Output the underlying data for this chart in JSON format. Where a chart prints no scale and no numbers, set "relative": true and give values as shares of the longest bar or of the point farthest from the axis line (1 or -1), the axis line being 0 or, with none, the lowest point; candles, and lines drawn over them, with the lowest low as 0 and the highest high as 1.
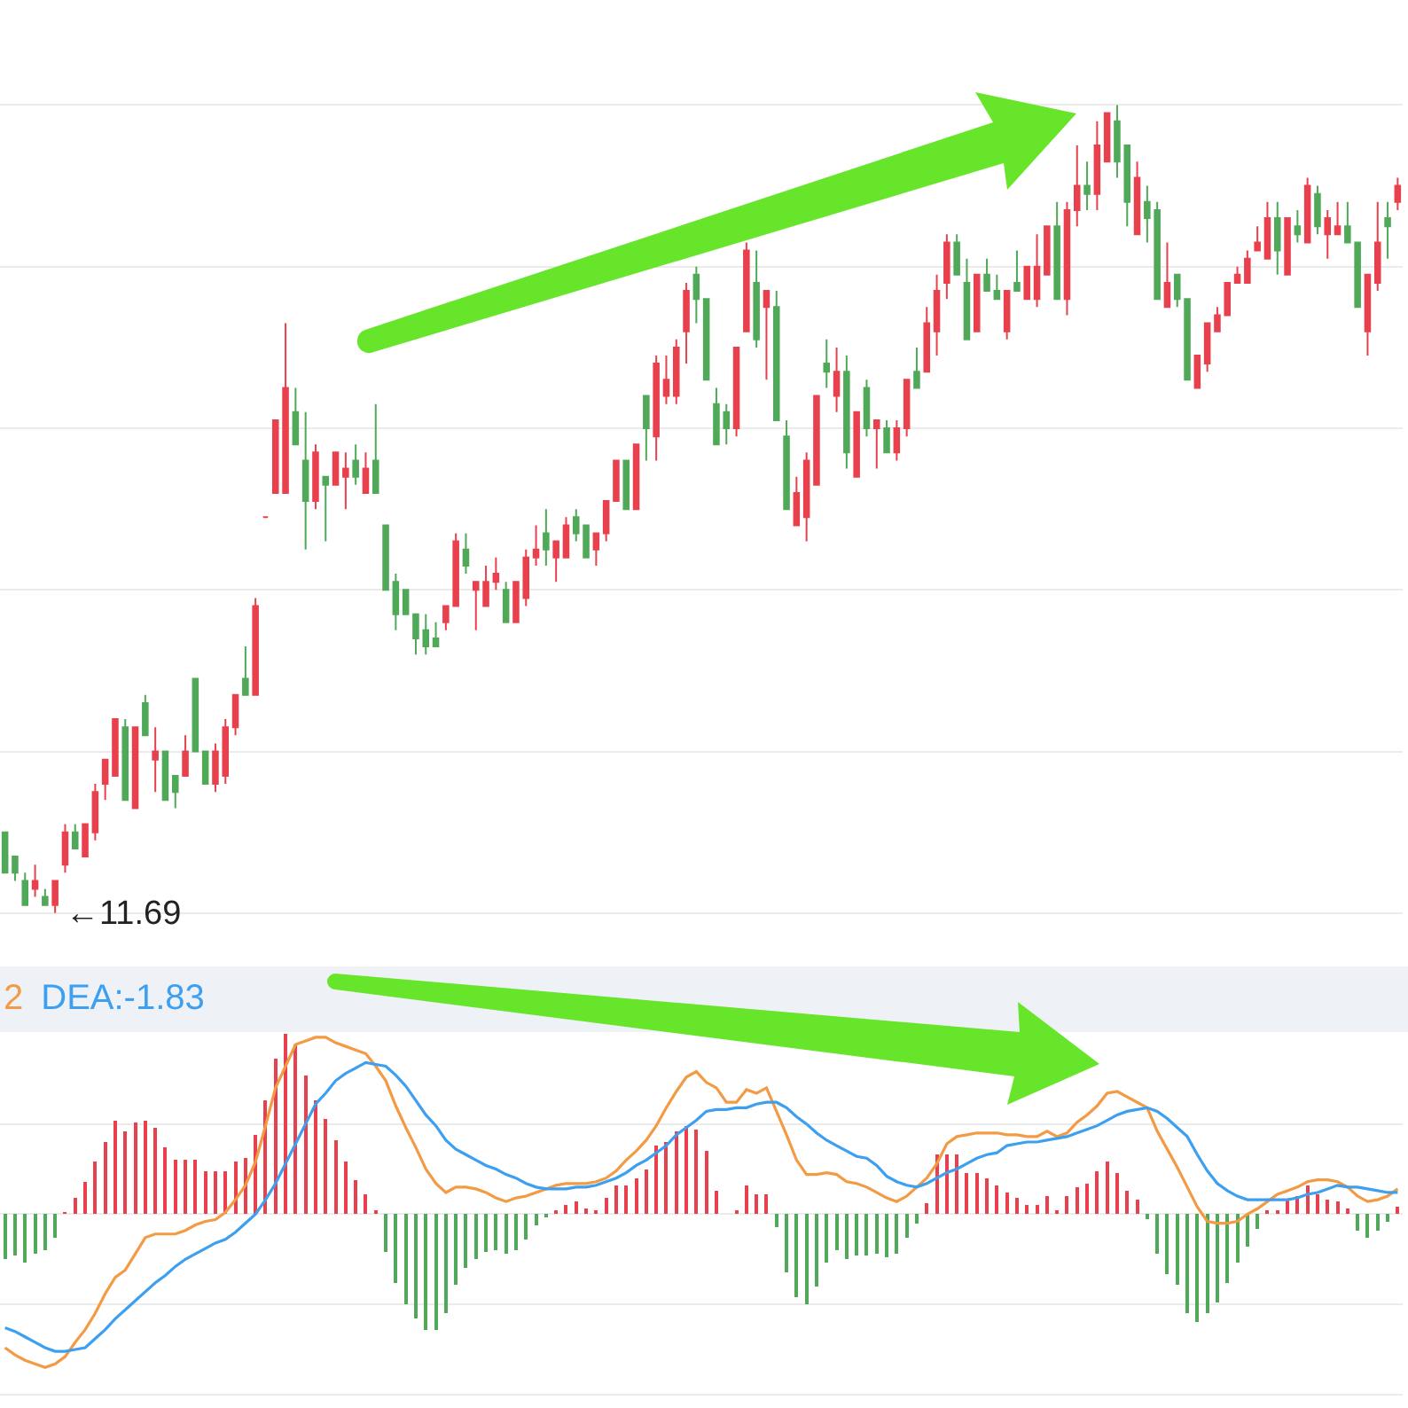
{
  "chart_data": [
    {
      "type": "candlestick",
      "relative": true,
      "grid": "y",
      "categories": [
        null,
        null,
        null,
        null,
        null,
        null,
        null,
        null,
        null,
        null,
        null,
        null,
        null,
        null,
        null,
        null,
        null,
        null,
        null,
        null,
        null,
        null,
        null,
        null,
        null,
        null,
        null,
        null,
        null,
        null,
        null,
        null,
        null,
        null,
        null,
        null,
        null,
        null,
        null,
        null,
        null,
        null,
        null,
        null,
        null,
        null,
        null,
        null,
        null,
        null,
        null,
        null,
        null,
        null,
        null,
        null,
        null,
        null,
        null,
        null,
        null,
        null,
        null,
        null,
        null,
        null,
        null,
        null,
        null,
        null,
        null,
        null,
        null,
        null,
        null,
        null,
        null,
        null,
        null,
        null,
        null,
        null,
        null,
        null,
        null,
        null,
        null,
        null,
        null,
        null,
        null,
        null,
        null,
        null,
        null,
        null,
        null,
        null,
        null,
        null,
        null,
        null,
        null,
        null,
        null,
        null,
        null,
        null,
        null,
        null,
        null,
        null,
        null,
        null,
        null,
        null,
        null,
        null,
        null,
        null,
        null,
        null,
        null,
        null,
        null,
        null,
        null,
        null,
        null,
        null,
        null,
        null,
        null,
        null,
        null,
        null,
        null,
        null,
        null,
        null
      ],
      "ohlc": [
        [
          0.1,
          0.1,
          0.05,
          0.05
        ],
        [
          0.07,
          0.07,
          0.04,
          0.05
        ],
        [
          0.04,
          0.05,
          0.01,
          0.01
        ],
        [
          0.03,
          0.06,
          0.02,
          0.04
        ],
        [
          0.02,
          0.03,
          0.01,
          0.01
        ],
        [
          0.01,
          0.04,
          0,
          0.04
        ],
        [
          0.06,
          0.11,
          0.05,
          0.1
        ],
        [
          0.1,
          0.11,
          0.08,
          0.08
        ],
        [
          0.07,
          0.11,
          0.07,
          0.11
        ],
        [
          0.1,
          0.16,
          0.09,
          0.15
        ],
        [
          0.16,
          0.19,
          0.14,
          0.19
        ],
        [
          0.17,
          0.24,
          0.17,
          0.24
        ],
        [
          0.23,
          0.24,
          0.14,
          0.14
        ],
        [
          0.13,
          0.23,
          0.13,
          0.23
        ],
        [
          0.26,
          0.27,
          0.22,
          0.22
        ],
        [
          0.19,
          0.23,
          0.15,
          0.2
        ],
        [
          0.2,
          0.2,
          0.14,
          0.14
        ],
        [
          0.17,
          0.17,
          0.13,
          0.15
        ],
        [
          0.17,
          0.22,
          0.17,
          0.2
        ],
        [
          0.29,
          0.29,
          0.2,
          0.2
        ],
        [
          0.2,
          0.2,
          0.16,
          0.16
        ],
        [
          0.16,
          0.21,
          0.15,
          0.2
        ],
        [
          0.17,
          0.24,
          0.16,
          0.23
        ],
        [
          0.23,
          0.27,
          0.22,
          0.27
        ],
        [
          0.29,
          0.33,
          0.27,
          0.27
        ],
        [
          0.27,
          0.39,
          0.27,
          0.38
        ],
        [
          0.49,
          0.49,
          0.49,
          0.49
        ],
        [
          0.52,
          0.61,
          0.52,
          0.61
        ],
        [
          0.52,
          0.73,
          0.52,
          0.65
        ],
        [
          0.62,
          0.65,
          0.58,
          0.58
        ],
        [
          0.56,
          0.62,
          0.45,
          0.51
        ],
        [
          0.51,
          0.58,
          0.5,
          0.57
        ],
        [
          0.54,
          0.54,
          0.46,
          0.53
        ],
        [
          0.53,
          0.57,
          0.53,
          0.57
        ],
        [
          0.54,
          0.57,
          0.5,
          0.55
        ],
        [
          0.56,
          0.58,
          0.53,
          0.54
        ],
        [
          0.52,
          0.57,
          0.52,
          0.55
        ],
        [
          0.56,
          0.63,
          0.52,
          0.52
        ],
        [
          0.48,
          0.48,
          0.4,
          0.4
        ],
        [
          0.41,
          0.42,
          0.35,
          0.37
        ],
        [
          0.4,
          0.4,
          0.37,
          0.37
        ],
        [
          0.37,
          0.37,
          0.32,
          0.34
        ],
        [
          0.35,
          0.37,
          0.32,
          0.33
        ],
        [
          0.34,
          0.36,
          0.33,
          0.33
        ],
        [
          0.36,
          0.38,
          0.35,
          0.38
        ],
        [
          0.38,
          0.47,
          0.38,
          0.46
        ],
        [
          0.45,
          0.47,
          0.42,
          0.43
        ],
        [
          0.4,
          0.41,
          0.35,
          0.41
        ],
        [
          0.38,
          0.43,
          0.38,
          0.41
        ],
        [
          0.41,
          0.44,
          0.4,
          0.42
        ],
        [
          0.4,
          0.41,
          0.36,
          0.36
        ],
        [
          0.36,
          0.41,
          0.36,
          0.41
        ],
        [
          0.39,
          0.45,
          0.38,
          0.44
        ],
        [
          0.44,
          0.48,
          0.43,
          0.45
        ],
        [
          0.47,
          0.5,
          0.43,
          0.45
        ],
        [
          0.44,
          0.46,
          0.41,
          0.46
        ],
        [
          0.44,
          0.49,
          0.44,
          0.48
        ],
        [
          0.49,
          0.5,
          0.46,
          0.47
        ],
        [
          0.48,
          0.48,
          0.44,
          0.44
        ],
        [
          0.45,
          0.47,
          0.43,
          0.47
        ],
        [
          0.47,
          0.51,
          0.46,
          0.51
        ],
        [
          0.51,
          0.56,
          0.51,
          0.56
        ],
        [
          0.56,
          0.56,
          0.5,
          0.5
        ],
        [
          0.5,
          0.58,
          0.5,
          0.58
        ],
        [
          0.64,
          0.64,
          0.56,
          0.6
        ],
        [
          0.59,
          0.69,
          0.56,
          0.68
        ],
        [
          0.64,
          0.69,
          0.63,
          0.66
        ],
        [
          0.64,
          0.71,
          0.63,
          0.7
        ],
        [
          0.72,
          0.78,
          0.68,
          0.77
        ],
        [
          0.79,
          0.8,
          0.73,
          0.76
        ],
        [
          0.76,
          0.76,
          0.66,
          0.66
        ],
        [
          0.63,
          0.65,
          0.58,
          0.58
        ],
        [
          0.62,
          0.63,
          0.58,
          0.6
        ],
        [
          0.6,
          0.7,
          0.59,
          0.7
        ],
        [
          0.72,
          0.83,
          0.72,
          0.82
        ],
        [
          0.78,
          0.82,
          0.7,
          0.71
        ],
        [
          0.75,
          0.77,
          0.66,
          0.77
        ],
        [
          0.75,
          0.77,
          0.61,
          0.61
        ],
        [
          0.59,
          0.61,
          0.5,
          0.5
        ],
        [
          0.48,
          0.54,
          0.48,
          0.52
        ],
        [
          0.49,
          0.57,
          0.46,
          0.56
        ],
        [
          0.53,
          0.64,
          0.53,
          0.64
        ],
        [
          0.68,
          0.71,
          0.65,
          0.67
        ],
        [
          0.64,
          0.7,
          0.62,
          0.67
        ],
        [
          0.67,
          0.69,
          0.55,
          0.57
        ],
        [
          0.54,
          0.62,
          0.54,
          0.62
        ],
        [
          0.65,
          0.66,
          0.59,
          0.6
        ],
        [
          0.6,
          0.61,
          0.55,
          0.61
        ],
        [
          0.6,
          0.61,
          0.57,
          0.57
        ],
        [
          0.57,
          0.61,
          0.56,
          0.6
        ],
        [
          0.6,
          0.66,
          0.59,
          0.66
        ],
        [
          0.67,
          0.7,
          0.65,
          0.65
        ],
        [
          0.67,
          0.75,
          0.67,
          0.73
        ],
        [
          0.72,
          0.79,
          0.69,
          0.77
        ],
        [
          0.78,
          0.84,
          0.76,
          0.83
        ],
        [
          0.83,
          0.84,
          0.79,
          0.79
        ],
        [
          0.78,
          0.81,
          0.71,
          0.71
        ],
        [
          0.72,
          0.79,
          0.72,
          0.79
        ],
        [
          0.79,
          0.81,
          0.77,
          0.77
        ],
        [
          0.77,
          0.79,
          0.76,
          0.76
        ],
        [
          0.72,
          0.77,
          0.71,
          0.77
        ],
        [
          0.78,
          0.82,
          0.77,
          0.77
        ],
        [
          0.76,
          0.8,
          0.76,
          0.8
        ],
        [
          0.76,
          0.84,
          0.75,
          0.8
        ],
        [
          0.79,
          0.85,
          0.79,
          0.85
        ],
        [
          0.85,
          0.88,
          0.76,
          0.76
        ],
        [
          0.76,
          0.88,
          0.74,
          0.87
        ],
        [
          0.87,
          0.95,
          0.85,
          0.9
        ],
        [
          0.9,
          0.93,
          0.87,
          0.89
        ],
        [
          0.89,
          0.98,
          0.87,
          0.95
        ],
        [
          0.93,
          0.99,
          0.93,
          0.99
        ],
        [
          0.98,
          1,
          0.91,
          0.93
        ],
        [
          0.95,
          0.95,
          0.85,
          0.88
        ],
        [
          0.84,
          0.93,
          0.84,
          0.91
        ],
        [
          0.88,
          0.9,
          0.83,
          0.86
        ],
        [
          0.87,
          0.88,
          0.76,
          0.76
        ],
        [
          0.75,
          0.83,
          0.75,
          0.78
        ],
        [
          0.79,
          0.79,
          0.75,
          0.76
        ],
        [
          0.76,
          0.76,
          0.66,
          0.66
        ],
        [
          0.65,
          0.69,
          0.65,
          0.69
        ],
        [
          0.68,
          0.73,
          0.67,
          0.73
        ],
        [
          0.72,
          0.75,
          0.72,
          0.74
        ],
        [
          0.74,
          0.78,
          0.74,
          0.78
        ],
        [
          0.78,
          0.8,
          0.78,
          0.79
        ],
        [
          0.78,
          0.82,
          0.78,
          0.81
        ],
        [
          0.82,
          0.85,
          0.82,
          0.83
        ],
        [
          0.81,
          0.88,
          0.81,
          0.86
        ],
        [
          0.86,
          0.88,
          0.79,
          0.82
        ],
        [
          0.79,
          0.86,
          0.79,
          0.86
        ],
        [
          0.85,
          0.87,
          0.83,
          0.84
        ],
        [
          0.83,
          0.91,
          0.83,
          0.9
        ],
        [
          0.89,
          0.9,
          0.84,
          0.85
        ],
        [
          0.84,
          0.87,
          0.81,
          0.86
        ],
        [
          0.84,
          0.88,
          0.84,
          0.85
        ],
        [
          0.85,
          0.88,
          0.83,
          0.83
        ],
        [
          0.83,
          0.83,
          0.75,
          0.75
        ],
        [
          0.72,
          0.79,
          0.69,
          0.79
        ],
        [
          0.78,
          0.88,
          0.77,
          0.83
        ],
        [
          0.86,
          0.88,
          0.81,
          0.85
        ],
        [
          0.88,
          0.91,
          0.87,
          0.9
        ]
      ],
      "colors": [
        "#4fa958",
        "#4fa958",
        "#4fa958",
        "#e8404c",
        "#4fa958",
        "#e8404c",
        "#e8404c",
        "#4fa958",
        "#e8404c",
        "#e8404c",
        "#e8404c",
        "#e8404c",
        "#4fa958",
        "#e8404c",
        "#4fa958",
        "#e8404c",
        "#4fa958",
        "#4fa958",
        "#e8404c",
        "#4fa958",
        "#4fa958",
        "#e8404c",
        "#e8404c",
        "#e8404c",
        "#4fa958",
        "#e8404c",
        "#e8404c",
        "#e8404c",
        "#e8404c",
        "#4fa958",
        "#4fa958",
        "#e8404c",
        "#4fa958",
        "#e8404c",
        "#e8404c",
        "#4fa958",
        "#e8404c",
        "#4fa958",
        "#4fa958",
        "#4fa958",
        "#4fa958",
        "#4fa958",
        "#4fa958",
        "#4fa958",
        "#e8404c",
        "#e8404c",
        "#4fa958",
        "#e8404c",
        "#e8404c",
        "#e8404c",
        "#4fa958",
        "#e8404c",
        "#e8404c",
        "#e8404c",
        "#4fa958",
        "#e8404c",
        "#e8404c",
        "#4fa958",
        "#4fa958",
        "#e8404c",
        "#e8404c",
        "#e8404c",
        "#4fa958",
        "#e8404c",
        "#4fa958",
        "#e8404c",
        "#e8404c",
        "#e8404c",
        "#e8404c",
        "#4fa958",
        "#4fa958",
        "#4fa958",
        "#4fa958",
        "#e8404c",
        "#e8404c",
        "#4fa958",
        "#e8404c",
        "#4fa958",
        "#4fa958",
        "#e8404c",
        "#e8404c",
        "#e8404c",
        "#4fa958",
        "#e8404c",
        "#4fa958",
        "#e8404c",
        "#4fa958",
        "#e8404c",
        "#4fa958",
        "#e8404c",
        "#e8404c",
        "#4fa958",
        "#e8404c",
        "#e8404c",
        "#e8404c",
        "#4fa958",
        "#4fa958",
        "#e8404c",
        "#4fa958",
        "#4fa958",
        "#e8404c",
        "#4fa958",
        "#e8404c",
        "#e8404c",
        "#e8404c",
        "#4fa958",
        "#e8404c",
        "#e8404c",
        "#4fa958",
        "#e8404c",
        "#e8404c",
        "#4fa958",
        "#4fa958",
        "#e8404c",
        "#4fa958",
        "#4fa958",
        "#e8404c",
        "#4fa958",
        "#4fa958",
        "#e8404c",
        "#e8404c",
        "#e8404c",
        "#e8404c",
        "#e8404c",
        "#e8404c",
        "#e8404c",
        "#e8404c",
        "#4fa958",
        "#e8404c",
        "#4fa958",
        "#e8404c",
        "#4fa958",
        "#e8404c",
        "#e8404c",
        "#4fa958",
        "#4fa958",
        "#e8404c",
        "#e8404c",
        "#4fa958",
        "#e8404c"
      ],
      "annotations": [
        "←11.69"
      ]
    },
    {
      "type": "bar",
      "relative": true,
      "grid": "y",
      "legend": "top left",
      "categories": [
        null,
        null,
        null,
        null,
        null,
        null,
        null,
        null,
        null,
        null,
        null,
        null,
        null,
        null,
        null,
        null,
        null,
        null,
        null,
        null,
        null,
        null,
        null,
        null,
        null,
        null,
        null,
        null,
        null,
        null,
        null,
        null,
        null,
        null,
        null,
        null,
        null,
        null,
        null,
        null,
        null,
        null,
        null,
        null,
        null,
        null,
        null,
        null,
        null,
        null,
        null,
        null,
        null,
        null,
        null,
        null,
        null,
        null,
        null,
        null,
        null,
        null,
        null,
        null,
        null,
        null,
        null,
        null,
        null,
        null,
        null,
        null,
        null,
        null,
        null,
        null,
        null,
        null,
        null,
        null,
        null,
        null,
        null,
        null,
        null,
        null,
        null,
        null,
        null,
        null,
        null,
        null,
        null,
        null,
        null,
        null,
        null,
        null,
        null,
        null,
        null,
        null,
        null,
        null,
        null,
        null,
        null,
        null,
        null,
        null,
        null,
        null,
        null,
        null,
        null,
        null,
        null,
        null,
        null,
        null,
        null,
        null,
        null,
        null,
        null,
        null,
        null,
        null,
        null,
        null,
        null,
        null,
        null,
        null,
        null,
        null,
        null,
        null,
        null,
        null
      ],
      "series": [
        {
          "type": "bar",
          "values": [
            -0.25,
            -0.23,
            -0.27,
            -0.22,
            -0.2,
            -0.13,
            0.01,
            0.09,
            0.18,
            0.29,
            0.4,
            0.52,
            0.46,
            0.51,
            0.52,
            0.48,
            0.37,
            0.3,
            0.3,
            0.3,
            0.24,
            0.24,
            0.24,
            0.29,
            0.31,
            0.44,
            0.63,
            0.86,
            1,
            0.94,
            0.77,
            0.63,
            0.53,
            0.41,
            0.29,
            0.19,
            0.11,
            0.02,
            -0.21,
            -0.38,
            -0.5,
            -0.58,
            -0.64,
            -0.64,
            -0.55,
            -0.39,
            -0.3,
            -0.25,
            -0.21,
            -0.2,
            -0.22,
            -0.2,
            -0.14,
            -0.06,
            -0.02,
            0.02,
            0.05,
            0.07,
            0.03,
            0.02,
            0.09,
            0.16,
            0.16,
            0.2,
            0.25,
            0.38,
            0.4,
            0.46,
            0.49,
            0.47,
            0.35,
            0.13,
            null,
            0.02,
            0.16,
            0.11,
            0.11,
            -0.07,
            -0.32,
            -0.46,
            -0.5,
            -0.4,
            -0.27,
            -0.2,
            -0.25,
            -0.23,
            -0.23,
            -0.22,
            -0.24,
            -0.22,
            -0.13,
            -0.05,
            0.06,
            0.33,
            0.33,
            0.33,
            0.23,
            0.23,
            0.2,
            0.16,
            0.12,
            0.09,
            0.05,
            0.05,
            0.1,
            0.02,
            0.1,
            0.15,
            0.17,
            0.24,
            0.29,
            0.23,
            0.13,
            0.08,
            -0.03,
            -0.22,
            -0.33,
            -0.39,
            -0.55,
            -0.6,
            -0.55,
            -0.49,
            -0.38,
            -0.27,
            -0.18,
            -0.08,
            0.02,
            0.02,
            0.08,
            0.1,
            0.16,
            0.11,
            0.08,
            0.07,
            0.03,
            -0.09,
            -0.13,
            -0.09,
            -0.04,
            0.04
          ],
          "colors": [
            "#4fa958",
            "#4fa958",
            "#4fa958",
            "#4fa958",
            "#4fa958",
            "#4fa958",
            "#e8404c",
            "#e8404c",
            "#e8404c",
            "#e8404c",
            "#e8404c",
            "#e8404c",
            "#e8404c",
            "#e8404c",
            "#e8404c",
            "#e8404c",
            "#e8404c",
            "#e8404c",
            "#e8404c",
            "#e8404c",
            "#e8404c",
            "#e8404c",
            "#e8404c",
            "#e8404c",
            "#e8404c",
            "#e8404c",
            "#e8404c",
            "#e8404c",
            "#e8404c",
            "#e8404c",
            "#e8404c",
            "#e8404c",
            "#e8404c",
            "#e8404c",
            "#e8404c",
            "#e8404c",
            "#e8404c",
            "#e8404c",
            "#4fa958",
            "#4fa958",
            "#4fa958",
            "#4fa958",
            "#4fa958",
            "#4fa958",
            "#4fa958",
            "#4fa958",
            "#4fa958",
            "#4fa958",
            "#4fa958",
            "#4fa958",
            "#4fa958",
            "#4fa958",
            "#4fa958",
            "#4fa958",
            "#4fa958",
            "#e8404c",
            "#e8404c",
            "#e8404c",
            "#e8404c",
            "#e8404c",
            "#e8404c",
            "#e8404c",
            "#e8404c",
            "#e8404c",
            "#e8404c",
            "#e8404c",
            "#e8404c",
            "#e8404c",
            "#e8404c",
            "#e8404c",
            "#e8404c",
            "#e8404c",
            "#e8404c",
            "#e8404c",
            "#e8404c",
            "#e8404c",
            "#e8404c",
            "#4fa958",
            "#4fa958",
            "#4fa958",
            "#4fa958",
            "#4fa958",
            "#4fa958",
            "#4fa958",
            "#4fa958",
            "#4fa958",
            "#4fa958",
            "#4fa958",
            "#4fa958",
            "#4fa958",
            "#4fa958",
            "#4fa958",
            "#e8404c",
            "#e8404c",
            "#e8404c",
            "#e8404c",
            "#e8404c",
            "#e8404c",
            "#e8404c",
            "#e8404c",
            "#e8404c",
            "#e8404c",
            "#e8404c",
            "#e8404c",
            "#e8404c",
            "#e8404c",
            "#e8404c",
            "#e8404c",
            "#e8404c",
            "#e8404c",
            "#e8404c",
            "#e8404c",
            "#e8404c",
            "#e8404c",
            "#4fa958",
            "#4fa958",
            "#4fa958",
            "#4fa958",
            "#4fa958",
            "#4fa958",
            "#4fa958",
            "#4fa958",
            "#4fa958",
            "#4fa958",
            "#4fa958",
            "#4fa958",
            "#e8404c",
            "#e8404c",
            "#e8404c",
            "#e8404c",
            "#e8404c",
            "#e8404c",
            "#e8404c",
            "#e8404c",
            "#e8404c",
            "#4fa958",
            "#4fa958",
            "#4fa958",
            "#4fa958",
            "#e8404c"
          ]
        },
        {
          "type": "line",
          "name": "2",
          "color": "#f39a44",
          "values": [
            -0.74,
            -0.78,
            -0.81,
            -0.83,
            -0.85,
            -0.83,
            -0.79,
            -0.71,
            -0.64,
            -0.55,
            -0.44,
            -0.35,
            -0.31,
            -0.22,
            -0.13,
            -0.11,
            -0.11,
            -0.11,
            -0.09,
            -0.06,
            -0.04,
            -0.03,
            0.01,
            0.08,
            0.16,
            0.29,
            0.49,
            0.7,
            0.82,
            0.94,
            0.96,
            0.98,
            0.98,
            0.95,
            0.93,
            0.91,
            0.89,
            0.82,
            0.74,
            0.6,
            0.48,
            0.37,
            0.25,
            0.17,
            0.12,
            0.15,
            0.15,
            0.14,
            0.12,
            0.09,
            0.07,
            0.09,
            0.1,
            0.12,
            0.14,
            0.16,
            0.17,
            0.17,
            0.17,
            0.18,
            0.2,
            0.24,
            0.3,
            0.35,
            0.41,
            0.49,
            0.59,
            0.68,
            0.76,
            0.79,
            0.73,
            0.7,
            0.62,
            0.62,
            0.69,
            0.67,
            0.7,
            0.57,
            0.44,
            0.3,
            0.22,
            0.22,
            0.23,
            0.22,
            0.18,
            0.17,
            0.15,
            0.12,
            0.09,
            0.07,
            0.1,
            0.15,
            0.2,
            0.28,
            0.39,
            0.43,
            0.44,
            0.45,
            0.45,
            0.45,
            0.44,
            0.44,
            0.43,
            0.43,
            0.46,
            0.43,
            0.45,
            0.51,
            0.55,
            0.6,
            0.67,
            0.68,
            0.65,
            0.62,
            0.59,
            0.46,
            0.36,
            0.26,
            0.15,
            0.04,
            -0.04,
            -0.05,
            -0.05,
            -0.04,
            0.0,
            0.03,
            0.07,
            0.11,
            0.13,
            0.15,
            0.18,
            0.19,
            0.19,
            0.18,
            0.15,
            0.1,
            0.07,
            0.08,
            0.1,
            0.14
          ]
        },
        {
          "type": "line",
          "name": "DEA:-1.83",
          "color": "#3d9ff0",
          "values": [
            -0.63,
            -0.65,
            -0.68,
            -0.71,
            -0.74,
            -0.76,
            -0.76,
            -0.75,
            -0.74,
            -0.69,
            -0.64,
            -0.58,
            -0.53,
            -0.48,
            -0.43,
            -0.38,
            -0.34,
            -0.29,
            -0.25,
            -0.22,
            -0.19,
            -0.16,
            -0.14,
            -0.1,
            -0.05,
            0.0,
            0.08,
            0.17,
            0.28,
            0.39,
            0.5,
            0.61,
            0.67,
            0.74,
            0.78,
            0.81,
            0.84,
            0.83,
            0.82,
            0.77,
            0.71,
            0.63,
            0.55,
            0.49,
            0.41,
            0.36,
            0.33,
            0.3,
            0.27,
            0.25,
            0.22,
            0.2,
            0.17,
            0.15,
            0.14,
            0.14,
            0.14,
            0.15,
            0.15,
            0.16,
            0.18,
            0.2,
            0.23,
            0.27,
            0.3,
            0.34,
            0.38,
            0.44,
            0.48,
            0.52,
            0.57,
            0.58,
            0.58,
            0.59,
            0.59,
            0.61,
            0.62,
            0.62,
            0.59,
            0.54,
            0.5,
            0.45,
            0.41,
            0.38,
            0.35,
            0.32,
            0.31,
            0.27,
            0.21,
            0.18,
            0.16,
            0.15,
            0.17,
            0.2,
            0.23,
            0.25,
            0.28,
            0.31,
            0.33,
            0.34,
            0.38,
            0.39,
            0.4,
            0.4,
            0.41,
            0.42,
            0.43,
            0.45,
            0.47,
            0.49,
            0.52,
            0.55,
            0.57,
            0.58,
            0.59,
            0.57,
            0.53,
            0.48,
            0.43,
            0.33,
            0.24,
            0.17,
            0.13,
            0.1,
            0.08,
            0.08,
            0.08,
            0.08,
            0.08,
            0.09,
            0.11,
            0.12,
            0.14,
            0.16,
            0.15,
            0.15,
            0.14,
            0.13,
            0.12,
            0.12
          ]
        }
      ]
    }
  ]
}
